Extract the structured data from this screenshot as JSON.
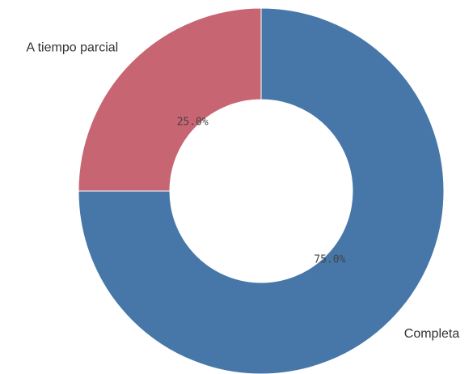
{
  "chart_data": {
    "type": "pie",
    "donut": true,
    "categories": [
      "Completa",
      "A tiempo parcial"
    ],
    "values": [
      75.0,
      25.0
    ],
    "value_labels": [
      "75.0%",
      "25.0%"
    ],
    "colors": [
      "#4677a8",
      "#c86573"
    ],
    "legend": false,
    "title": ""
  }
}
